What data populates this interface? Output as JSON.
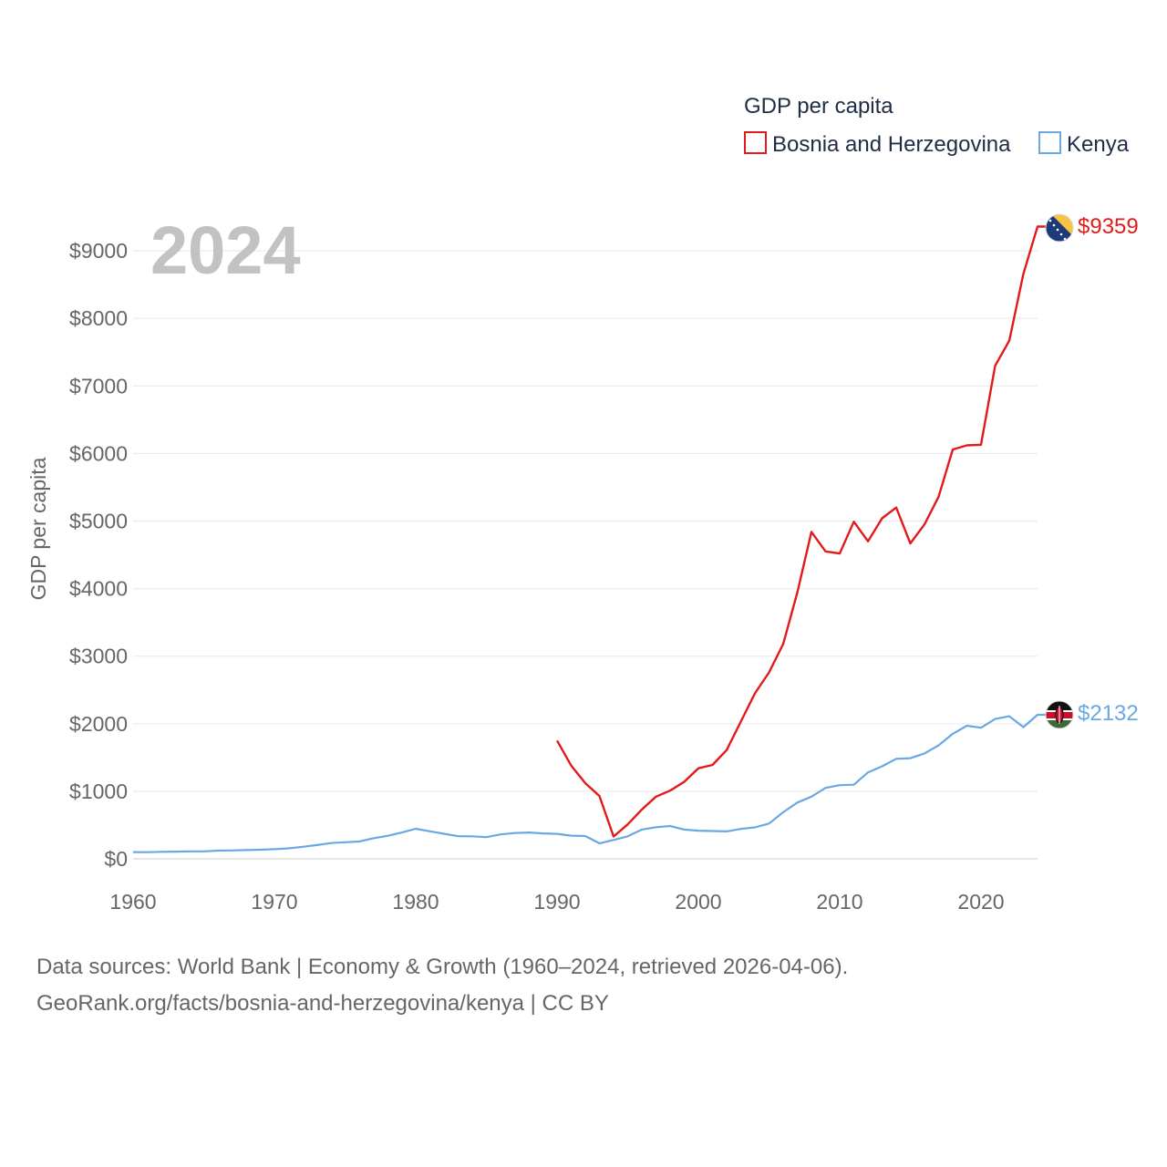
{
  "chart_data": {
    "type": "line",
    "title": "GDP per capita",
    "ylabel": "GDP per capita",
    "xlabel": "",
    "year_label": "2024",
    "xlim": [
      1960,
      2024
    ],
    "ylim": [
      0,
      9600
    ],
    "x_ticks": [
      1960,
      1970,
      1980,
      1990,
      2000,
      2010,
      2020
    ],
    "x_tick_labels": [
      "1960",
      "1970",
      "1980",
      "1990",
      "2000",
      "2010",
      "2020"
    ],
    "y_ticks": [
      0,
      1000,
      2000,
      3000,
      4000,
      5000,
      6000,
      7000,
      8000,
      9000
    ],
    "y_tick_labels": [
      "$0",
      "$1000",
      "$2000",
      "$3000",
      "$4000",
      "$5000",
      "$6000",
      "$7000",
      "$8000",
      "$9000"
    ],
    "grid": true,
    "legend_position": "top-right",
    "series": [
      {
        "name": "Bosnia and Herzegovina",
        "color": "#e31a1c",
        "end_label": "$9359",
        "x": [
          1990,
          1991,
          1992,
          1993,
          1994,
          1995,
          1996,
          1997,
          1998,
          1999,
          2000,
          2001,
          2002,
          2003,
          2004,
          2005,
          2006,
          2007,
          2008,
          2009,
          2010,
          2011,
          2012,
          2013,
          2014,
          2015,
          2016,
          2017,
          2018,
          2019,
          2020,
          2021,
          2022,
          2023,
          2024
        ],
        "values": [
          1750,
          1380,
          1120,
          930,
          330,
          510,
          730,
          920,
          1010,
          1140,
          1340,
          1390,
          1610,
          2030,
          2450,
          2760,
          3180,
          3940,
          4840,
          4550,
          4520,
          4990,
          4700,
          5040,
          5200,
          4670,
          4950,
          5360,
          6060,
          6120,
          6130,
          7300,
          7670,
          8660,
          9359
        ]
      },
      {
        "name": "Kenya",
        "color": "#6aa8e4",
        "end_label": "$2132",
        "x": [
          1960,
          1961,
          1962,
          1963,
          1964,
          1965,
          1966,
          1967,
          1968,
          1969,
          1970,
          1971,
          1972,
          1973,
          1974,
          1975,
          1976,
          1977,
          1978,
          1979,
          1980,
          1981,
          1982,
          1983,
          1984,
          1985,
          1986,
          1987,
          1988,
          1989,
          1990,
          1991,
          1992,
          1993,
          1994,
          1995,
          1996,
          1997,
          1998,
          1999,
          2000,
          2001,
          2002,
          2003,
          2004,
          2005,
          2006,
          2007,
          2008,
          2009,
          2010,
          2011,
          2012,
          2013,
          2014,
          2015,
          2016,
          2017,
          2018,
          2019,
          2020,
          2021,
          2022,
          2023,
          2024
        ],
        "values": [
          100,
          98,
          104,
          107,
          111,
          110,
          121,
          124,
          130,
          135,
          143,
          155,
          178,
          204,
          234,
          245,
          257,
          305,
          340,
          388,
          445,
          408,
          371,
          335,
          333,
          321,
          361,
          382,
          390,
          376,
          370,
          343,
          338,
          230,
          280,
          333,
          433,
          468,
          486,
          433,
          417,
          412,
          406,
          443,
          466,
          522,
          689,
          832,
          920,
          1050,
          1090,
          1097,
          1280,
          1370,
          1480,
          1490,
          1560,
          1680,
          1850,
          1970,
          1940,
          2070,
          2110,
          1950,
          2132
        ]
      }
    ]
  },
  "footer": {
    "line1": "Data sources: World Bank | Economy & Growth (1960–2024, retrieved 2026-04-06).",
    "line2": "GeoRank.org/facts/bosnia-and-herzegovina/kenya | CC BY"
  },
  "flags": {
    "bosnia": "bosnia-flag-icon",
    "kenya": "kenya-flag-icon"
  }
}
